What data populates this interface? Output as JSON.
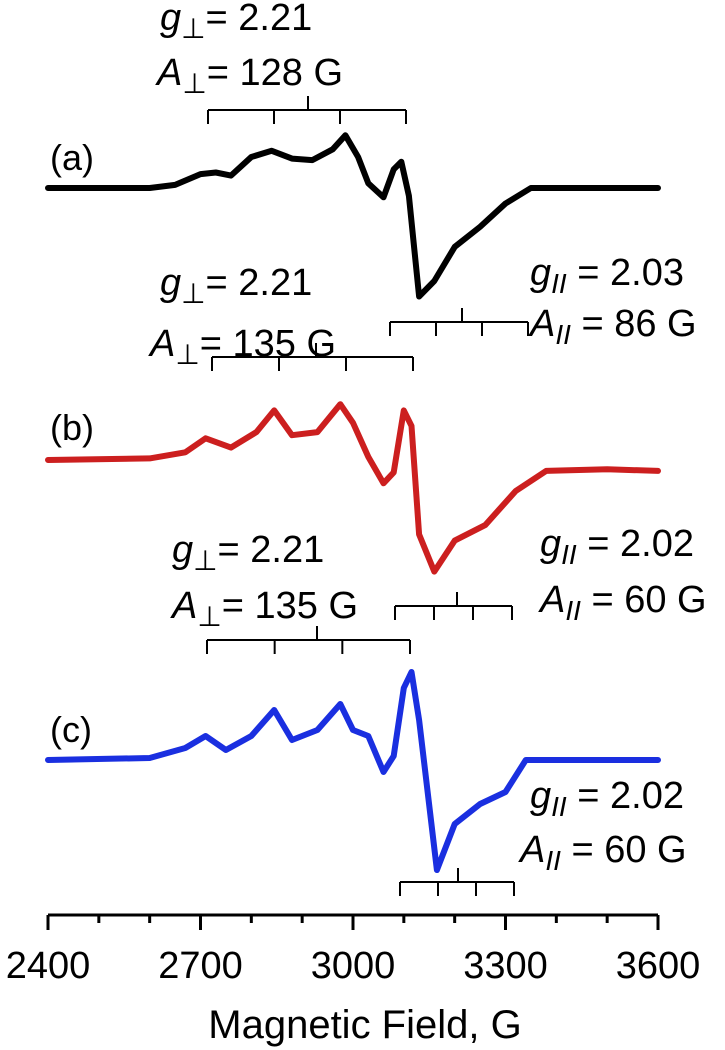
{
  "chart_data": {
    "type": "line",
    "xlabel": "Magnetic Field, G",
    "ylabel": "",
    "xlim": [
      2400,
      3600
    ],
    "x_ticks": [
      2400,
      2700,
      3000,
      3300,
      3600
    ],
    "grid": false,
    "legend": "none",
    "series": [
      {
        "label": "(a)",
        "color": "#000000",
        "x": [
          2400,
          2600,
          2650,
          2700,
          2730,
          2760,
          2800,
          2840,
          2880,
          2920,
          2960,
          2985,
          3010,
          3030,
          3060,
          3080,
          3095,
          3110,
          3130,
          3160,
          3200,
          3250,
          3300,
          3350,
          3400,
          3500,
          3600
        ],
        "y": [
          0,
          0,
          0.02,
          0.09,
          0.1,
          0.08,
          0.2,
          0.24,
          0.19,
          0.18,
          0.25,
          0.34,
          0.2,
          0.03,
          -0.06,
          0.12,
          0.17,
          -0.05,
          -0.7,
          -0.6,
          -0.38,
          -0.25,
          -0.1,
          0,
          0,
          0,
          0
        ],
        "g_perp": "g⊥= 2.21",
        "a_perp": "A⊥= 128 G",
        "g_par": "gII = 2.03",
        "a_par": "AII = 86 G"
      },
      {
        "label": "(b)",
        "color": "#cc1f1f",
        "x": [
          2400,
          2600,
          2670,
          2710,
          2760,
          2810,
          2845,
          2880,
          2930,
          2975,
          3000,
          3030,
          3060,
          3080,
          3100,
          3115,
          3130,
          3160,
          3200,
          3260,
          3320,
          3380,
          3500,
          3600
        ],
        "y": [
          0,
          0.01,
          0.05,
          0.14,
          0.08,
          0.18,
          0.32,
          0.16,
          0.18,
          0.36,
          0.24,
          0.02,
          -0.15,
          -0.08,
          0.32,
          0.22,
          -0.48,
          -0.72,
          -0.52,
          -0.42,
          -0.2,
          -0.07,
          -0.06,
          -0.07
        ],
        "g_perp": "g⊥= 2.21",
        "a_perp": "A⊥= 135 G",
        "g_par": "gII = 2.02",
        "a_par": "AII = 60 G"
      },
      {
        "label": "(c)",
        "color": "#1a2fe0",
        "x": [
          2400,
          2600,
          2670,
          2710,
          2750,
          2800,
          2845,
          2880,
          2930,
          2975,
          3000,
          3030,
          3060,
          3080,
          3100,
          3115,
          3130,
          3165,
          3200,
          3250,
          3300,
          3340,
          3400,
          3600
        ],
        "y": [
          0,
          0.01,
          0.06,
          0.12,
          0.05,
          0.12,
          0.25,
          0.1,
          0.15,
          0.28,
          0.15,
          0.12,
          -0.06,
          0.02,
          0.36,
          0.44,
          0.2,
          -0.55,
          -0.32,
          -0.22,
          -0.16,
          0,
          0,
          0
        ],
        "g_perp": "g⊥= 2.21",
        "a_perp": "A⊥= 135 G",
        "g_par": "gII = 2.02",
        "a_par": "AII = 60 G"
      }
    ]
  }
}
